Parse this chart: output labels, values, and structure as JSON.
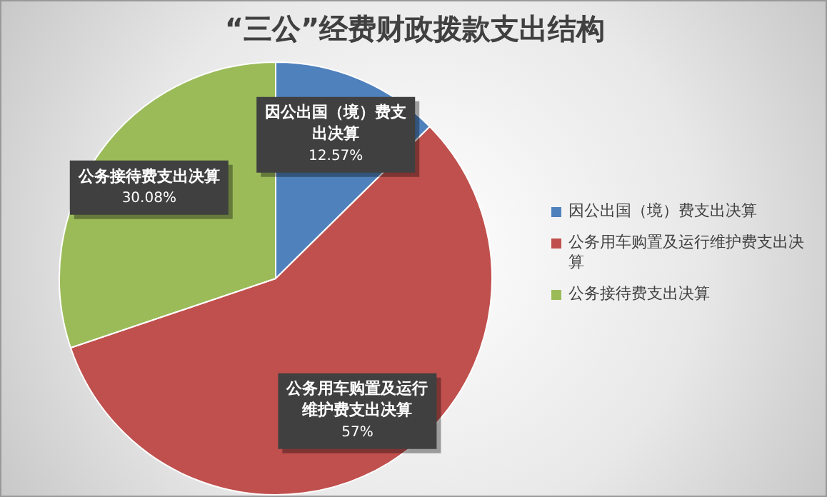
{
  "chart_data": {
    "type": "pie",
    "title": "“三公”经费财政拨款支出结构",
    "categories": [
      "因公出国（境）费支出决算",
      "公务用车购置及运行维护费支出决算",
      "公务接待费支出决算"
    ],
    "values": [
      12.57,
      57,
      30.08
    ],
    "colors": [
      "#4f81bd",
      "#c0504d",
      "#9bbb59"
    ],
    "value_labels": [
      "12.57%",
      "57%",
      "30.08%"
    ],
    "legend": "right"
  }
}
